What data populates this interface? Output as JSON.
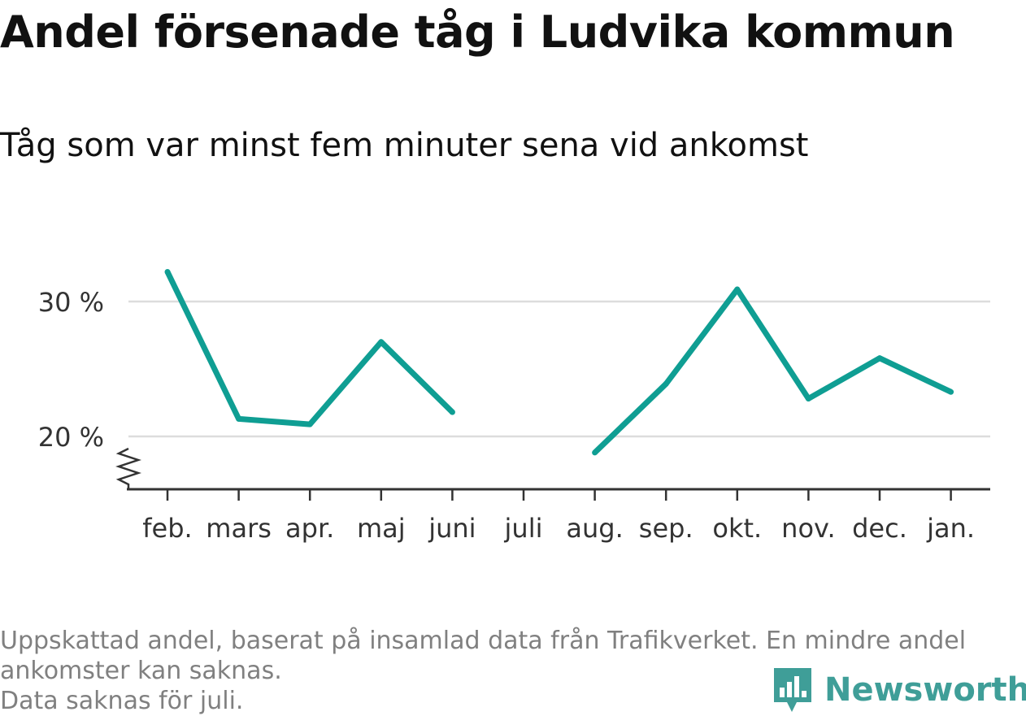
{
  "title": "Andel försenade tåg i Ludvika kommun",
  "subtitle": "Tåg som var minst fem minuter sena vid ankomst",
  "footnote": {
    "line1": "Uppskattad andel, baserat på insamlad data från Trafikverket. En mindre andel",
    "line2": "ankomster kan saknas.",
    "line3": "Data saknas för juli."
  },
  "brand": {
    "name": "Newsworthy",
    "color": "#3f9e98",
    "icon": "newsworthy-logo-icon"
  },
  "colors": {
    "line": "#0f9e93",
    "grid": "#dddddd",
    "axis": "#333333",
    "text": "#333333"
  },
  "chart_data": {
    "type": "line",
    "categories": [
      "feb.",
      "mars",
      "apr.",
      "maj",
      "juni",
      "juli",
      "aug.",
      "sep.",
      "okt.",
      "nov.",
      "dec.",
      "jan."
    ],
    "series": [
      {
        "values": [
          32.2,
          21.3,
          20.9,
          27.0,
          21.8,
          null,
          18.8,
          23.9,
          30.9,
          22.8,
          25.8,
          23.3
        ]
      }
    ],
    "yticks": [
      20,
      30
    ],
    "ytick_labels": [
      "20 %",
      "30 %"
    ],
    "ylim": [
      16,
      33
    ],
    "axis_break": true,
    "grid": true,
    "xlabel": "",
    "ylabel": ""
  }
}
